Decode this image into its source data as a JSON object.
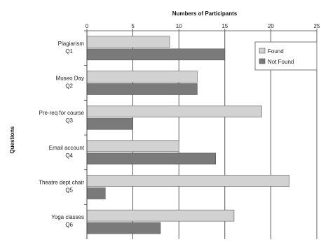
{
  "chart_data": {
    "type": "bar",
    "orientation": "horizontal",
    "title": "Numbers of Participants",
    "xlabel": "Numbers of Participants",
    "ylabel": "Questions",
    "xlim": [
      0,
      25
    ],
    "xticks": [
      "0",
      "5",
      "10",
      "15",
      "20",
      "25"
    ],
    "grid": true,
    "legend_position": "top-right",
    "categories": [
      {
        "line1": "Plagiarism",
        "line2": "Q1"
      },
      {
        "line1": "Museo Day",
        "line2": "Q2"
      },
      {
        "line1": "Pre-req for course",
        "line2": "Q3"
      },
      {
        "line1": "Email account",
        "line2": "Q4"
      },
      {
        "line1": "Theatre dept chair",
        "line2": "Q5"
      },
      {
        "line1": "Yoga classes",
        "line2": "Q6"
      }
    ],
    "series": [
      {
        "name": "Found",
        "color": "#d2d2d2",
        "values": [
          9,
          12,
          19,
          10,
          22,
          16
        ]
      },
      {
        "name": "Not Found",
        "color": "#7a7a7a",
        "values": [
          15,
          12,
          5,
          14,
          2,
          8
        ]
      }
    ]
  }
}
